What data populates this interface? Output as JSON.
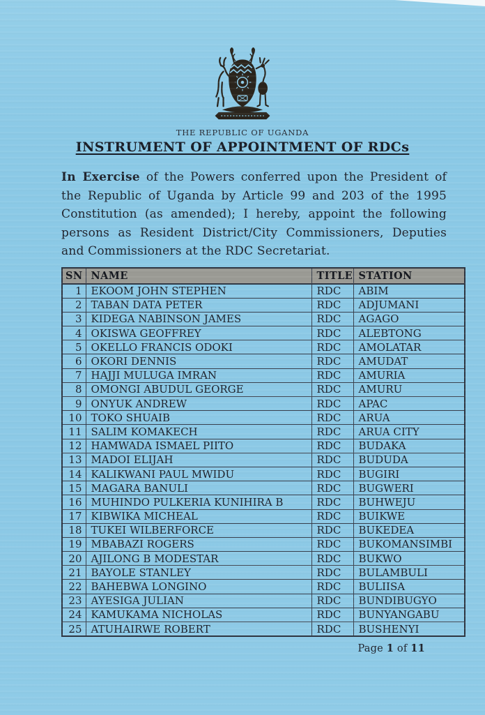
{
  "header": {
    "country_line": "THE REPUBLIC OF UGANDA",
    "title": "INSTRUMENT OF APPOINTMENT OF RDCs",
    "coat_of_arms_icon": "uganda-coat-of-arms"
  },
  "intro": {
    "lead": "In Exercise",
    "body": " of the Powers conferred upon the President of the Republic of Uganda by Article 99 and 203 of the 1995 Constitution (as amended); I hereby, appoint the following persons as Resident District/City Commissioners, Deputies and Commissioners at the RDC Secretariat."
  },
  "table": {
    "headers": [
      "SN",
      "NAME",
      "TITLE",
      "STATION"
    ],
    "rows": [
      [
        "1",
        "EKOOM JOHN STEPHEN",
        "RDC",
        "ABIM"
      ],
      [
        "2",
        "TABAN DATA PETER",
        "RDC",
        "ADJUMANI"
      ],
      [
        "3",
        "KIDEGA NABINSON JAMES",
        "RDC",
        "AGAGO"
      ],
      [
        "4",
        "OKISWA GEOFFREY",
        "RDC",
        "ALEBTONG"
      ],
      [
        "5",
        "OKELLO FRANCIS ODOKI",
        "RDC",
        "AMOLATAR"
      ],
      [
        "6",
        "OKORI DENNIS",
        "RDC",
        "AMUDAT"
      ],
      [
        "7",
        "HAJJI MULUGA IMRAN",
        "RDC",
        "AMURIA"
      ],
      [
        "8",
        "OMONGI  ABUDUL GEORGE",
        "RDC",
        "AMURU"
      ],
      [
        "9",
        "ONYUK ANDREW",
        "RDC",
        "APAC"
      ],
      [
        "10",
        "TOKO SHUAIB",
        "RDC",
        "ARUA"
      ],
      [
        "11",
        "SALIM KOMAKECH",
        "RDC",
        "ARUA CITY"
      ],
      [
        "12",
        "HAMWADA ISMAEL PIITO",
        "RDC",
        "BUDAKA"
      ],
      [
        "13",
        "MADOI ELIJAH",
        "RDC",
        "BUDUDA"
      ],
      [
        "14",
        "KALIKWANI PAUL MWIDU",
        "RDC",
        "BUGIRI"
      ],
      [
        "15",
        "MAGARA BANULI",
        "RDC",
        "BUGWERI"
      ],
      [
        "16",
        "MUHINDO PULKERIA KUNIHIRA B",
        "RDC",
        "BUHWEJU"
      ],
      [
        "17",
        "KIBWIKA MICHEAL",
        "RDC",
        "BUIKWE"
      ],
      [
        "18",
        "TUKEI WILBERFORCE",
        "RDC",
        "BUKEDEA"
      ],
      [
        "19",
        "MBABAZI ROGERS",
        "RDC",
        "BUKOMANSIMBI"
      ],
      [
        "20",
        "AJILONG B MODESTAR",
        "RDC",
        "BUKWO"
      ],
      [
        "21",
        "BAYOLE STANLEY",
        "RDC",
        "BULAMBULI"
      ],
      [
        "22",
        "BAHEBWA LONGINO",
        "RDC",
        "BULIISA"
      ],
      [
        "23",
        "AYESIGA JULIAN",
        "RDC",
        "BUNDIBUGYO"
      ],
      [
        "24",
        "KAMUKAMA NICHOLAS",
        "RDC",
        "BUNYANGABU"
      ],
      [
        "25",
        "ATUHAIRWE ROBERT",
        "RDC",
        "BUSHENYI"
      ]
    ]
  },
  "footer": {
    "label_page": "Page",
    "current_page": "1",
    "label_of": "of",
    "total_pages": "11"
  },
  "colors": {
    "page_background": "#8bc9e6",
    "table_header_background": "#9a9a94",
    "ink": "#20242e",
    "table_border": "#39404d"
  }
}
